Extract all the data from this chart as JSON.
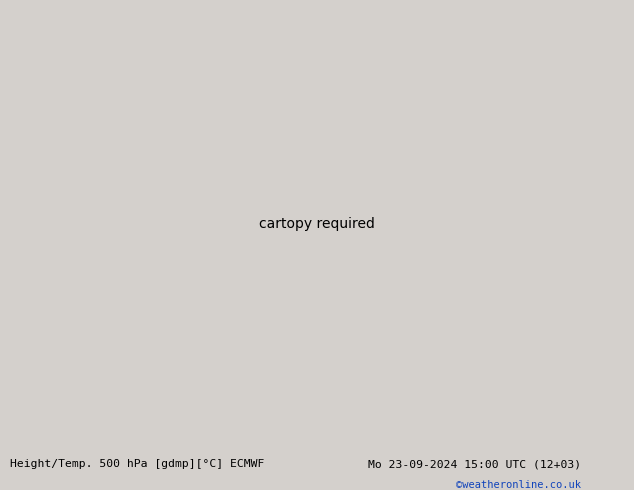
{
  "title_left": "Height/Temp. 500 hPa [gdmp][°C] ECMWF",
  "title_right": "Mo 23-09-2024 15:00 UTC (12+03)",
  "credit": "©weatheronline.co.uk",
  "bg_map": "#d4d0cc",
  "land_green": "#c8d8b0",
  "land_gray": "#b8b8b8",
  "ocean": "#d4d0cc",
  "fig_width": 6.34,
  "fig_height": 4.9,
  "dpi": 100
}
